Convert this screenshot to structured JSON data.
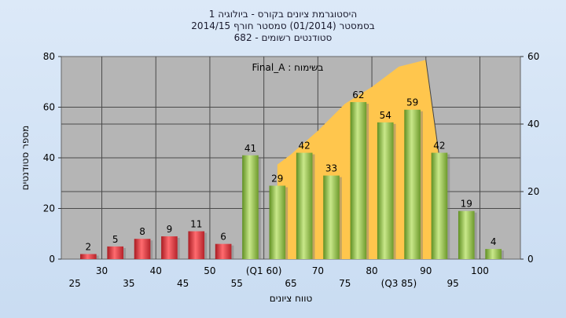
{
  "chart_data": {
    "type": "bar",
    "title_lines": [
      "היסטוגרמת ציונים בקורס - ביולוגיה 1",
      "בסמסטר  (01/2014)  סמסטר חורף 2014/15",
      "סטודנטים רשומים - 682"
    ],
    "annotation": "בשימוח : Final_A",
    "xlabel": "טווח ציונים",
    "ylabel": "מספר סטודנטים",
    "ylim": [
      0,
      80
    ],
    "y_ticks": [
      0,
      20,
      40,
      60,
      80
    ],
    "y2lim": [
      0,
      60
    ],
    "y2_ticks": [
      0,
      20,
      40,
      60
    ],
    "x_labels_upper": [
      "30",
      "40",
      "50",
      "(Q1 60)",
      "70",
      "80",
      "90",
      "100"
    ],
    "x_labels_lower": [
      "25",
      "35",
      "45",
      "55",
      "65",
      "75",
      "(Q3 85)",
      "95"
    ],
    "values": [
      2,
      5,
      8,
      9,
      11,
      6,
      41,
      29,
      42,
      33,
      62,
      54,
      59,
      42,
      19,
      4
    ],
    "bar_colors": [
      "#e0383d",
      "#e0383d",
      "#e0383d",
      "#e0383d",
      "#e0383d",
      "#e0383d",
      "#8fc34a",
      "#8fc34a",
      "#8fc34a",
      "#8fc34a",
      "#8fc34a",
      "#8fc34a",
      "#8fc34a",
      "#8fc34a",
      "#8fc34a",
      "#8fc34a"
    ],
    "area": {
      "color": "#ffc64d",
      "points": [
        [
          7,
          28
        ],
        [
          7.5,
          31
        ],
        [
          8.5,
          38
        ],
        [
          9.5,
          46
        ],
        [
          10.5,
          51
        ],
        [
          11.5,
          57
        ],
        [
          12.5,
          59
        ],
        [
          13,
          30
        ]
      ]
    }
  }
}
